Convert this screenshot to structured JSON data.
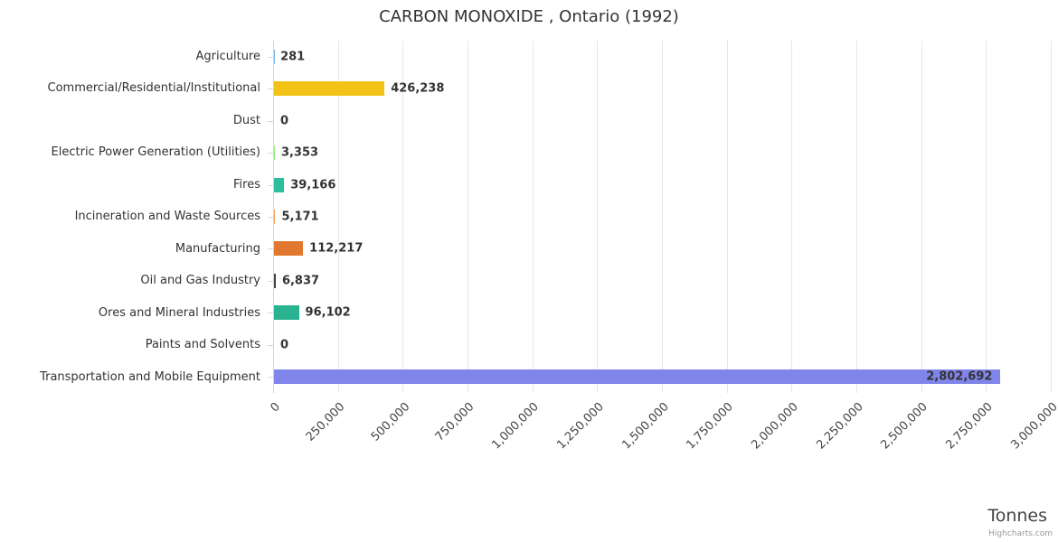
{
  "title": "CARBON MONOXIDE , Ontario (1992)",
  "credit": "Highcharts.com",
  "chart_data": {
    "type": "bar",
    "orientation": "horizontal",
    "title": "CARBON MONOXIDE , Ontario (1992)",
    "categories": [
      "Agriculture",
      "Commercial/Residential/Institutional",
      "Dust",
      "Electric Power Generation (Utilities)",
      "Fires",
      "Incineration and Waste Sources",
      "Manufacturing",
      "Oil and Gas Industry",
      "Ores and Mineral Industries",
      "Paints and Solvents",
      "Transportation and Mobile Equipment"
    ],
    "values": [
      281,
      426238,
      0,
      3353,
      39166,
      5171,
      112217,
      6837,
      96102,
      0,
      2802692
    ],
    "value_labels": [
      "281",
      "426,238",
      "0",
      "3,353",
      "39,166",
      "5,171",
      "112,217",
      "6,837",
      "96,102",
      "0",
      "2,802,692"
    ],
    "colors": [
      "#7cb5ec",
      "#f0c316",
      "#7cb5ec",
      "#90ed7d",
      "#2cbf9f",
      "#f7a35c",
      "#e0782f",
      "#434348",
      "#2ab391",
      "#f15c80",
      "#8085e9"
    ],
    "xlabel": "Tonnes",
    "xlim": [
      0,
      3000000
    ],
    "x_ticks": [
      "0",
      "250,000",
      "500,000",
      "750,000",
      "1,000,000",
      "1,250,000",
      "1,500,000",
      "1,750,000",
      "2,000,000",
      "2,250,000",
      "2,500,000",
      "2,750,000",
      "3,000,000"
    ],
    "grid": true,
    "legend": false
  }
}
